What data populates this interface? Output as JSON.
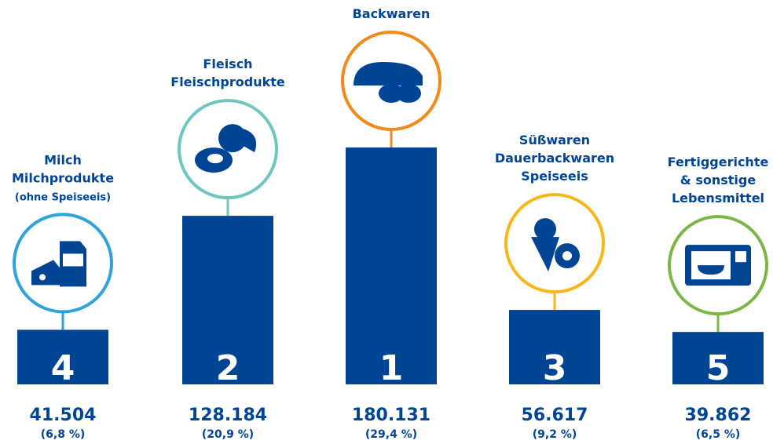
{
  "chart_data": {
    "type": "bar",
    "categories": [
      [
        "Milch",
        "Milchprodukte",
        "(ohne Speiseeis)"
      ],
      [
        "Fleisch",
        "Fleischprodukte"
      ],
      [
        "Backwaren"
      ],
      [
        "Süßwaren",
        "Dauerbackwaren",
        "Speiseeis"
      ],
      [
        "Fertiggerichte",
        "& sonstige",
        "Lebensmittel"
      ]
    ],
    "ranks": [
      4,
      2,
      1,
      3,
      5
    ],
    "values": [
      41504,
      128184,
      180131,
      56617,
      39862
    ],
    "value_labels": [
      "41.504",
      "128.184",
      "180.131",
      "56.617",
      "39.862"
    ],
    "shares": [
      6.8,
      20.9,
      29.4,
      9.2,
      6.5
    ],
    "share_labels": [
      "(6,8 %)",
      "(20,9 %)",
      "(29,4 %)",
      "(9,2 %)",
      "(6,5 %)"
    ],
    "color": "#004494",
    "circle_colors": [
      "#2ea3db",
      "#6fc6c0",
      "#f08a1c",
      "#f5b71c",
      "#7cb646"
    ]
  }
}
